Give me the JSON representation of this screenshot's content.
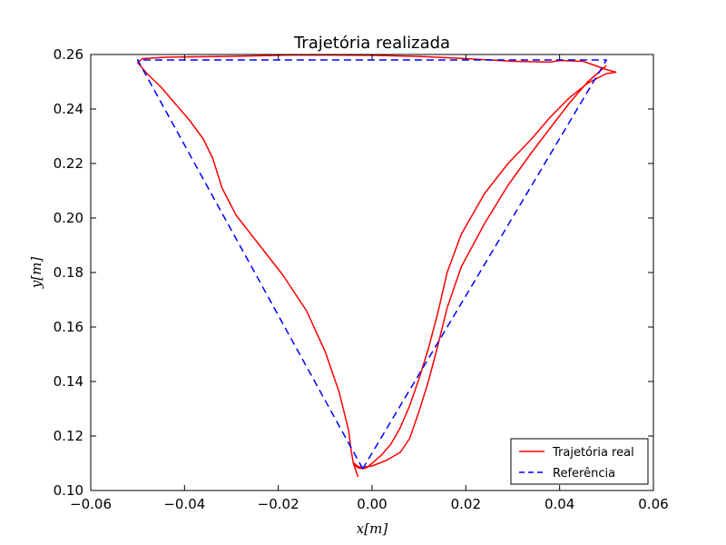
{
  "chart_data": {
    "type": "line",
    "title": "Trajetória realizada",
    "xlabel": "x[m]",
    "ylabel": "y[m]",
    "xlim": [
      -0.06,
      0.06
    ],
    "ylim": [
      0.1,
      0.26
    ],
    "xticks": [
      -0.06,
      -0.04,
      -0.02,
      0.0,
      0.02,
      0.04,
      0.06
    ],
    "xtick_labels": [
      "−0.06",
      "−0.04",
      "−0.02",
      "0.00",
      "0.02",
      "0.04",
      "0.06"
    ],
    "yticks": [
      0.1,
      0.12,
      0.14,
      0.16,
      0.18,
      0.2,
      0.22,
      0.24,
      0.26
    ],
    "ytick_labels": [
      "0.10",
      "0.12",
      "0.14",
      "0.16",
      "0.18",
      "0.20",
      "0.22",
      "0.24",
      "0.26"
    ],
    "grid": false,
    "legend_position": "bottom-right",
    "series": [
      {
        "name": "Trajetória real",
        "color": "#ff0000",
        "style": "solid",
        "x": [
          -0.003,
          -0.0036,
          -0.004,
          -0.0045,
          -0.005,
          -0.007,
          -0.01,
          -0.014,
          -0.019,
          -0.024,
          -0.029,
          -0.032,
          -0.034,
          -0.036,
          -0.039,
          -0.042,
          -0.045,
          -0.048,
          -0.05,
          -0.049,
          -0.044,
          -0.035,
          -0.025,
          -0.018,
          -0.008,
          0.0,
          0.01,
          0.02,
          0.03,
          0.038,
          0.04,
          0.045,
          0.05,
          0.052,
          0.05,
          0.046,
          0.042,
          0.038,
          0.034,
          0.029,
          0.024,
          0.019,
          0.016,
          0.014,
          0.012,
          0.01,
          0.008,
          0.006,
          0.004,
          0.002,
          0.0,
          -0.001,
          -0.002,
          -0.003,
          -0.0035,
          -0.0038,
          -0.0035,
          -0.003,
          -0.002,
          0.0,
          0.003,
          0.006,
          0.008,
          0.01,
          0.012,
          0.014,
          0.016,
          0.019,
          0.024,
          0.029,
          0.034,
          0.038,
          0.042,
          0.046,
          0.049,
          0.05
        ],
        "y": [
          0.105,
          0.108,
          0.11,
          0.115,
          0.122,
          0.136,
          0.151,
          0.166,
          0.179,
          0.19,
          0.201,
          0.211,
          0.222,
          0.229,
          0.236,
          0.242,
          0.248,
          0.253,
          0.257,
          0.2585,
          0.259,
          0.2592,
          0.2595,
          0.2598,
          0.2598,
          0.2597,
          0.2593,
          0.2585,
          0.2575,
          0.2572,
          0.2578,
          0.2575,
          0.2545,
          0.2535,
          0.253,
          0.2495,
          0.244,
          0.237,
          0.229,
          0.22,
          0.209,
          0.194,
          0.18,
          0.165,
          0.152,
          0.141,
          0.131,
          0.123,
          0.117,
          0.113,
          0.11,
          0.1085,
          0.108,
          0.1083,
          0.109,
          0.11,
          0.1095,
          0.1088,
          0.1085,
          0.109,
          0.111,
          0.114,
          0.119,
          0.129,
          0.14,
          0.153,
          0.167,
          0.182,
          0.198,
          0.212,
          0.224,
          0.233,
          0.242,
          0.25,
          0.2545,
          0.256
        ]
      },
      {
        "name": "Referência",
        "color": "#0000ff",
        "style": "dashed",
        "x": [
          -0.002,
          -0.05,
          0.05,
          -0.002
        ],
        "y": [
          0.108,
          0.258,
          0.258,
          0.108
        ]
      }
    ]
  }
}
